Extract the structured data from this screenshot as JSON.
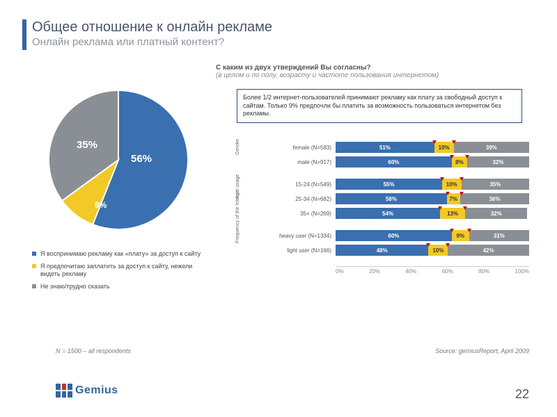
{
  "title": "Общее отношение к онлайн рекламе",
  "subtitle": "Онлайн реклама или платный контент?",
  "question_bold": "С каким из двух утверждений Вы согласны?",
  "question_italic": "(в целом и по полу, возрасту и частоте пользования интернетом)",
  "infobox": "Более 1/2 интернет-пользователей принимают рекламу как плату за свободный доступ к сайтам. Только 9% предпочли бы платить за возможность пользоваться интернетом без рекламы.",
  "pie": {
    "slices": [
      {
        "value": 56,
        "label": "56%",
        "color": "#3a6fb0"
      },
      {
        "value": 9,
        "label": "9%",
        "color": "#f2c926"
      },
      {
        "value": 35,
        "label": "35%",
        "color": "#8a8f95"
      }
    ],
    "legend": [
      {
        "color": "#3a6fb0",
        "text": "Я воспринимаю рекламу как «плату» за доступ к сайту"
      },
      {
        "color": "#f2c926",
        "text": "Я предпочитаю заплатить за доступ к сайту, нежели видеть рекламу"
      },
      {
        "color": "#8a8f95",
        "text": "Не знаю/трудно сказать"
      }
    ]
  },
  "bars": {
    "seg_colors": [
      "#3a6fb0",
      "#f2c926",
      "#8a8f95"
    ],
    "groups": [
      {
        "label": "Gender",
        "rows": [
          {
            "label": "female (N=583)",
            "vals": [
              51,
              10,
              39
            ]
          },
          {
            "label": "male (N=917)",
            "vals": [
              60,
              8,
              32
            ]
          }
        ]
      },
      {
        "label": "Age",
        "rows": [
          {
            "label": "15-24 (N=549)",
            "vals": [
              55,
              10,
              35
            ]
          },
          {
            "label": "25-34 (N=682)",
            "vals": [
              58,
              7,
              36
            ]
          },
          {
            "label": "35+ (N=269)",
            "vals": [
              54,
              13,
              32
            ]
          }
        ]
      },
      {
        "label": "Frequency of the Internet usage",
        "rows": [
          {
            "label": "heavy user (N=1334)",
            "vals": [
              60,
              9,
              31
            ]
          },
          {
            "label": "light user (N=166)",
            "vals": [
              48,
              10,
              42
            ]
          }
        ]
      }
    ],
    "axis": [
      "0%",
      "20%",
      "40%",
      "60%",
      "80%",
      "100%"
    ]
  },
  "footnote_n": "N = 1500 – all respondents",
  "source": "Source: gemiusReport, April 2009",
  "logo_text": "Gemius",
  "page_num": "22"
}
